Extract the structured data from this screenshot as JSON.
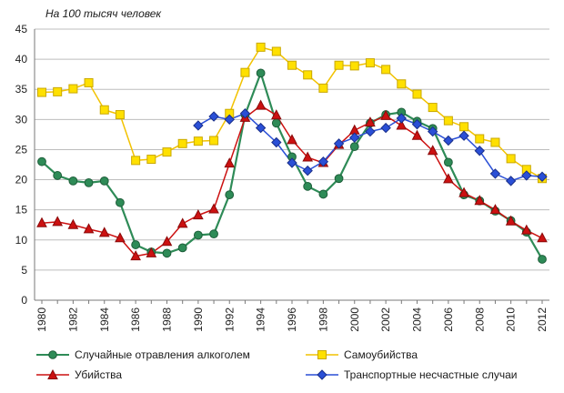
{
  "chart_data": {
    "type": "line",
    "title": "",
    "ylabel": "На 100 тысяч человек",
    "xlabel": "",
    "ylim": [
      0,
      45
    ],
    "yticks": [
      0,
      5,
      10,
      15,
      20,
      25,
      30,
      35,
      40,
      45
    ],
    "xticks": [
      1980,
      1982,
      1984,
      1986,
      1988,
      1990,
      1992,
      1994,
      1996,
      1998,
      2000,
      2002,
      2004,
      2006,
      2008,
      2010,
      2012
    ],
    "xlim": [
      1980,
      2012
    ],
    "grid": true,
    "legend_position": "bottom",
    "series": [
      {
        "name": "Случайные отравления алкоголем",
        "color": "#2e8b57",
        "marker": "circle",
        "x": [
          1980,
          1981,
          1982,
          1983,
          1984,
          1985,
          1986,
          1987,
          1988,
          1989,
          1990,
          1991,
          1992,
          1993,
          1994,
          1995,
          1996,
          1997,
          1998,
          1999,
          2000,
          2001,
          2002,
          2003,
          2004,
          2005,
          2006,
          2007,
          2008,
          2009,
          2010,
          2011,
          2012
        ],
        "values": [
          23,
          20.7,
          19.8,
          19.5,
          19.8,
          16.2,
          9.2,
          8,
          7.8,
          8.7,
          10.8,
          11,
          17.5,
          30.8,
          37.7,
          29.4,
          23.8,
          18.9,
          17.6,
          20.2,
          25.5,
          29.4,
          30.8,
          31.2,
          29.7,
          28.5,
          22.9,
          17.5,
          16.5,
          14.8,
          13.2,
          11.3,
          6.8
        ]
      },
      {
        "name": "Самоубийства",
        "color": "#f2c200",
        "marker": "square",
        "x": [
          1980,
          1981,
          1982,
          1983,
          1984,
          1985,
          1986,
          1987,
          1988,
          1989,
          1990,
          1991,
          1992,
          1993,
          1994,
          1995,
          1996,
          1997,
          1998,
          1999,
          2000,
          2001,
          2002,
          2003,
          2004,
          2005,
          2006,
          2007,
          2008,
          2009,
          2010,
          2011,
          2012
        ],
        "values": [
          34.5,
          34.6,
          35.1,
          36.1,
          31.6,
          30.8,
          23.2,
          23.4,
          24.6,
          26,
          26.4,
          26.5,
          31,
          37.8,
          42,
          41.3,
          39,
          37.4,
          35.2,
          39,
          38.9,
          39.4,
          38.3,
          35.9,
          34.2,
          32,
          29.8,
          28.8,
          26.8,
          26.2,
          23.5,
          21.7,
          20.2
        ]
      },
      {
        "name": "Убийства",
        "color": "#cc1111",
        "marker": "triangle",
        "x": [
          1980,
          1981,
          1982,
          1983,
          1984,
          1985,
          1986,
          1987,
          1988,
          1989,
          1990,
          1991,
          1992,
          1993,
          1994,
          1995,
          1996,
          1997,
          1998,
          1999,
          2000,
          2001,
          2002,
          2003,
          2004,
          2005,
          2006,
          2007,
          2008,
          2009,
          2010,
          2011,
          2012
        ],
        "values": [
          12.8,
          13,
          12.5,
          11.8,
          11.2,
          10.3,
          7.3,
          7.8,
          9.7,
          12.7,
          14.1,
          15.1,
          22.7,
          30.3,
          32.3,
          30.7,
          26.6,
          23.7,
          22.8,
          25.8,
          28.2,
          29.5,
          30.6,
          29,
          27.3,
          24.8,
          20.1,
          17.8,
          16.5,
          15,
          13.1,
          11.6,
          10.3
        ]
      },
      {
        "name": "Транспортные несчастные случаи",
        "color": "#2a4fd6",
        "marker": "diamond",
        "x": [
          1990,
          1991,
          1992,
          1993,
          1994,
          1995,
          1996,
          1997,
          1998,
          1999,
          2000,
          2001,
          2002,
          2003,
          2004,
          2005,
          2006,
          2007,
          2008,
          2009,
          2010,
          2011,
          2012
        ],
        "values": [
          29,
          30.5,
          30,
          31,
          28.6,
          26.2,
          22.8,
          21.5,
          23,
          26,
          27,
          28,
          28.6,
          30.2,
          29.2,
          28,
          26.5,
          27.3,
          24.8,
          21,
          19.8,
          20.7,
          20.5
        ]
      }
    ]
  }
}
